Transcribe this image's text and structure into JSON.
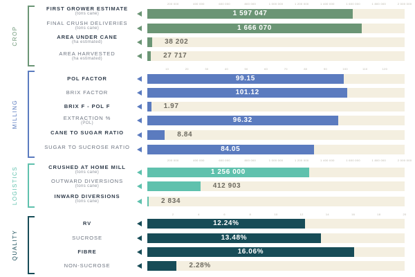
{
  "colors": {
    "crop": "#6b9575",
    "milling": "#5b7bbf",
    "logistics": "#5fc1ad",
    "quality": "#174c57",
    "track": "#f4efe0",
    "label_text": "#2f3b4a"
  },
  "chart_data": [
    {
      "type": "bar",
      "group": "CROP",
      "xlim": [
        0,
        2000000
      ],
      "ticks": [
        "200 000",
        "400 000",
        "600 000",
        "800 000",
        "1 000 000",
        "1 200 000",
        "1 400 000",
        "1 600 000",
        "1 800 000",
        "2 000 000"
      ],
      "rows": [
        {
          "label": "FIRST GROWER ESTIMATE",
          "sub": "(tons cane)",
          "bold": true,
          "value": 1597047,
          "value_label": "1 597 047"
        },
        {
          "label": "FINAL CRUSH DELIVERIES",
          "sub": "(tons cane)",
          "bold": false,
          "value": 1666070,
          "value_label": "1 666 070"
        },
        {
          "label": "AREA UNDER CANE",
          "sub": "(ha estimated)",
          "bold": true,
          "value": 38202,
          "value_label": "38 202"
        },
        {
          "label": "AREA HARVESTED",
          "sub": "(ha estimated)",
          "bold": false,
          "value": 27717,
          "value_label": "27 717"
        }
      ]
    },
    {
      "type": "bar",
      "group": "MILLING",
      "xlim": [
        0,
        130
      ],
      "ticks": [
        "10",
        "20",
        "30",
        "40",
        "50",
        "60",
        "70",
        "80",
        "90",
        "100",
        "110",
        "120"
      ],
      "rows": [
        {
          "label": "POL FACTOR",
          "sub": "",
          "bold": true,
          "value": 99.15,
          "value_label": "99.15"
        },
        {
          "label": "BRIX FACTOR",
          "sub": "",
          "bold": false,
          "value": 101.12,
          "value_label": "101.12"
        },
        {
          "label": "BRIX F - POL F",
          "sub": "",
          "bold": true,
          "value": 1.97,
          "value_label": "1.97"
        },
        {
          "label": "EXTRACTION %",
          "sub": "(POL)",
          "bold": false,
          "value": 96.32,
          "value_label": "96.32"
        },
        {
          "label": "CANE TO SUGAR RATIO",
          "sub": "",
          "bold": true,
          "value": 8.84,
          "value_label": "8.84"
        },
        {
          "label": "SUGAR TO SUCROSE RATIO",
          "sub": "",
          "bold": false,
          "value": 84.05,
          "value_label": "84.05"
        }
      ]
    },
    {
      "type": "bar",
      "group": "LOGISTICS",
      "xlim": [
        0,
        2000000
      ],
      "ticks": [
        "200 000",
        "400 000",
        "600 000",
        "800 000",
        "1 000 000",
        "1 200 000",
        "1 400 000",
        "1 600 000",
        "1 800 000",
        "2 000 000"
      ],
      "rows": [
        {
          "label": "CRUSHED AT HOME MILL",
          "sub": "(tons cane)",
          "bold": true,
          "value": 1256000,
          "value_label": "1 256 000"
        },
        {
          "label": "OUTWARD DIVERSIONS",
          "sub": "(tons cane)",
          "bold": false,
          "value": 412903,
          "value_label": "412 903"
        },
        {
          "label": "INWARD DIVERSIONS",
          "sub": "(tons cane)",
          "bold": true,
          "value": 2834,
          "value_label": "2 834"
        }
      ]
    },
    {
      "type": "bar",
      "group": "QUALITY",
      "xlim": [
        0,
        20
      ],
      "ticks": [
        "2",
        "4",
        "6",
        "8",
        "10",
        "12",
        "14",
        "16",
        "18",
        "20"
      ],
      "rows": [
        {
          "label": "RV",
          "sub": "",
          "bold": true,
          "value": 12.24,
          "value_label": "12.24%"
        },
        {
          "label": "SUCROSE",
          "sub": "",
          "bold": false,
          "value": 13.48,
          "value_label": "13.48%"
        },
        {
          "label": "FIBRE",
          "sub": "",
          "bold": true,
          "value": 16.06,
          "value_label": "16.06%"
        },
        {
          "label": "NON-SUCROSE",
          "sub": "",
          "bold": false,
          "value": 2.28,
          "value_label": "2.28%"
        }
      ]
    }
  ]
}
